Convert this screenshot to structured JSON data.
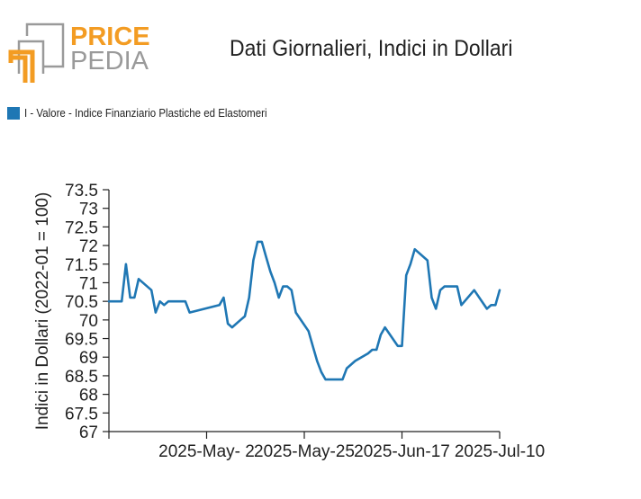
{
  "logo": {
    "line1": "PRICE",
    "line2": "PEDIA"
  },
  "colors": {
    "logo_orange": "#f39c23",
    "logo_gray": "#9a9a9a",
    "series": "#1f77b4"
  },
  "chart_data": {
    "type": "line",
    "title": "Dati Giornalieri, Indici in Dollari",
    "ylabel": "Indici in Dollari (2022-01 = 100)",
    "xlabel": "",
    "ylim": [
      67,
      73.5
    ],
    "yticks": [
      "67",
      "67.5",
      "68",
      "68.5",
      "69",
      "69.5",
      "70",
      "70.5",
      "71",
      "71.5",
      "72",
      "72.5",
      "73",
      "73.5"
    ],
    "xticks": [
      {
        "label": "2025-May- 2",
        "date": "2025-05-02"
      },
      {
        "label": "2025-May-25",
        "date": "2025-05-25"
      },
      {
        "label": "2025-Jun-17",
        "date": "2025-06-17"
      },
      {
        "label": "2025-Jul-10",
        "date": "2025-07-10"
      }
    ],
    "xlim": [
      "2025-04-09",
      "2025-07-10"
    ],
    "legend": "top-left",
    "grid": false,
    "series": [
      {
        "name": "I - Valore - Indice Finanziario Plastiche ed Elastomeri",
        "color": "#1f77b4",
        "points": [
          [
            "2025-04-09",
            70.5
          ],
          [
            "2025-04-12",
            70.5
          ],
          [
            "2025-04-13",
            71.5
          ],
          [
            "2025-04-14",
            70.6
          ],
          [
            "2025-04-15",
            70.6
          ],
          [
            "2025-04-16",
            71.1
          ],
          [
            "2025-04-19",
            70.8
          ],
          [
            "2025-04-20",
            70.2
          ],
          [
            "2025-04-21",
            70.5
          ],
          [
            "2025-04-22",
            70.4
          ],
          [
            "2025-04-23",
            70.5
          ],
          [
            "2025-04-26",
            70.5
          ],
          [
            "2025-04-27",
            70.5
          ],
          [
            "2025-04-28",
            70.2
          ],
          [
            "2025-05-05",
            70.4
          ],
          [
            "2025-05-06",
            70.6
          ],
          [
            "2025-05-07",
            69.9
          ],
          [
            "2025-05-08",
            69.8
          ],
          [
            "2025-05-10",
            70.0
          ],
          [
            "2025-05-11",
            70.1
          ],
          [
            "2025-05-12",
            70.6
          ],
          [
            "2025-05-13",
            71.6
          ],
          [
            "2025-05-14",
            72.1
          ],
          [
            "2025-05-15",
            72.1
          ],
          [
            "2025-05-16",
            71.7
          ],
          [
            "2025-05-17",
            71.3
          ],
          [
            "2025-05-18",
            71.0
          ],
          [
            "2025-05-19",
            70.6
          ],
          [
            "2025-05-20",
            70.9
          ],
          [
            "2025-05-21",
            70.9
          ],
          [
            "2025-05-22",
            70.8
          ],
          [
            "2025-05-23",
            70.2
          ],
          [
            "2025-05-26",
            69.7
          ],
          [
            "2025-05-27",
            69.3
          ],
          [
            "2025-05-28",
            68.9
          ],
          [
            "2025-05-29",
            68.6
          ],
          [
            "2025-05-30",
            68.4
          ],
          [
            "2025-06-03",
            68.4
          ],
          [
            "2025-06-04",
            68.7
          ],
          [
            "2025-06-05",
            68.8
          ],
          [
            "2025-06-06",
            68.9
          ],
          [
            "2025-06-09",
            69.1
          ],
          [
            "2025-06-10",
            69.2
          ],
          [
            "2025-06-11",
            69.2
          ],
          [
            "2025-06-12",
            69.6
          ],
          [
            "2025-06-13",
            69.8
          ],
          [
            "2025-06-16",
            69.3
          ],
          [
            "2025-06-17",
            69.3
          ],
          [
            "2025-06-18",
            71.2
          ],
          [
            "2025-06-19",
            71.5
          ],
          [
            "2025-06-20",
            71.9
          ],
          [
            "2025-06-23",
            71.6
          ],
          [
            "2025-06-24",
            70.6
          ],
          [
            "2025-06-25",
            70.3
          ],
          [
            "2025-06-26",
            70.8
          ],
          [
            "2025-06-27",
            70.9
          ],
          [
            "2025-06-30",
            70.9
          ],
          [
            "2025-07-01",
            70.4
          ],
          [
            "2025-07-04",
            70.8
          ],
          [
            "2025-07-07",
            70.3
          ],
          [
            "2025-07-08",
            70.4
          ],
          [
            "2025-07-09",
            70.4
          ],
          [
            "2025-07-10",
            70.8
          ]
        ]
      }
    ]
  }
}
